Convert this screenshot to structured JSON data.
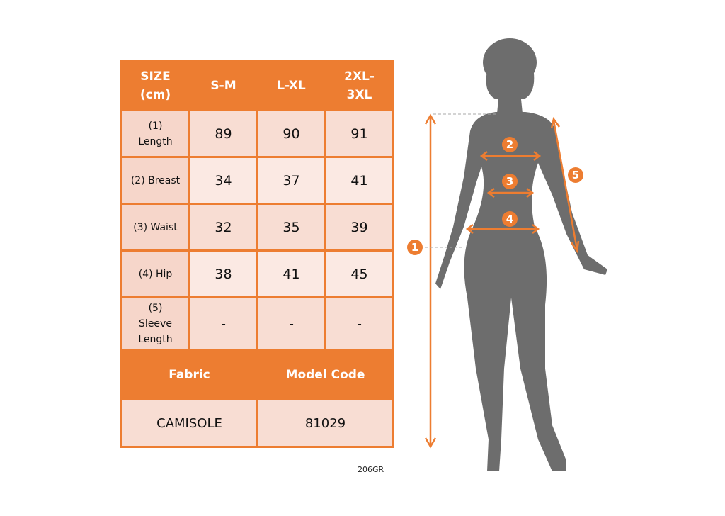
{
  "table": {
    "header": [
      "SIZE\n(cm)",
      "S-M",
      "L-XL",
      "2XL-\n3XL"
    ],
    "rows": [
      {
        "label": "(1)\nLength",
        "values": [
          "89",
          "90",
          "91"
        ]
      },
      {
        "label": "(2) Breast",
        "values": [
          "34",
          "37",
          "41"
        ]
      },
      {
        "label": "(3) Waist",
        "values": [
          "32",
          "35",
          "39"
        ]
      },
      {
        "label": "(4) Hip",
        "values": [
          "38",
          "41",
          "45"
        ]
      },
      {
        "label": "(5)\nSleeve\nLength",
        "values": [
          "-",
          "-",
          "-"
        ]
      }
    ],
    "footer_headers": [
      "Fabric",
      "Model Code"
    ],
    "footer_values": [
      "CAMISOLE",
      "81029"
    ]
  },
  "product_code": "206GR",
  "figure": {
    "markers": [
      "1",
      "2",
      "3",
      "4",
      "5"
    ]
  },
  "colors": {
    "accent": "#ed7d31",
    "silhouette": "#6d6d6d"
  }
}
